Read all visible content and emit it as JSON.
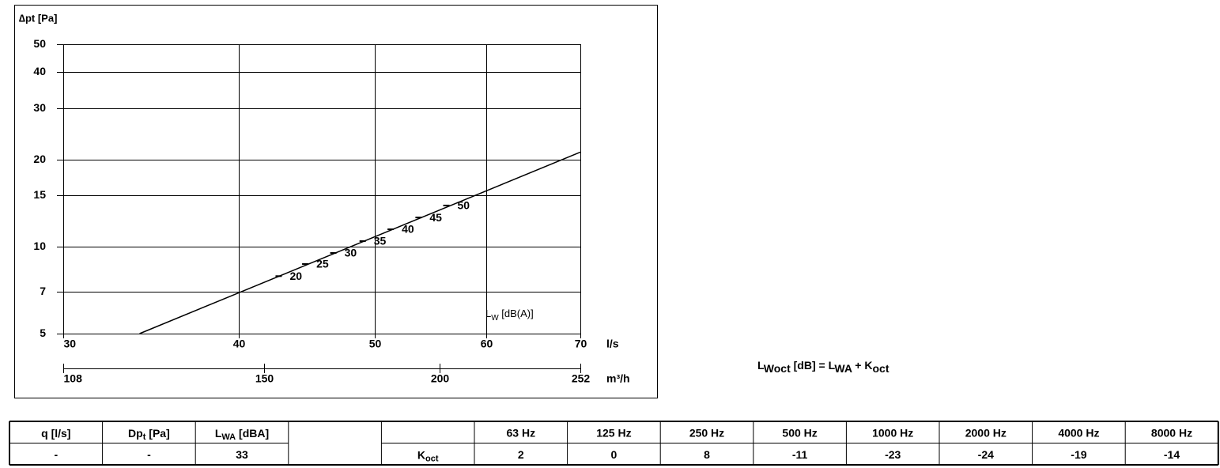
{
  "chart_data": {
    "type": "line",
    "ylabel": "∆pt [Pa]",
    "xlabel": "l/s",
    "x2label": "m³/h",
    "log_x": true,
    "log_y": true,
    "grid": true,
    "xlim": [
      30,
      70
    ],
    "xticks": [
      30,
      40,
      50,
      60,
      70
    ],
    "x2lim": [
      108,
      252
    ],
    "x2ticks": [
      108,
      150,
      200,
      252
    ],
    "ylim": [
      5,
      50
    ],
    "yticks": [
      5,
      7,
      10,
      15,
      20,
      30,
      40,
      50
    ],
    "line": {
      "x": [
        34,
        70
      ],
      "values": [
        5,
        21.2
      ],
      "color": "#000000"
    },
    "sound_levels": {
      "name": [
        "L",
        "W",
        " [dB(A)]"
      ],
      "x": [
        42.7,
        44.6,
        46.7,
        49.0,
        51.3,
        53.7,
        56.2
      ],
      "y": [
        7.9,
        8.7,
        9.5,
        10.44,
        11.47,
        12.6,
        13.86
      ],
      "values": [
        20,
        25,
        30,
        35,
        40,
        45,
        50
      ]
    }
  },
  "formula": [
    "L",
    "Woct",
    " [dB] = L",
    "WA",
    " + K",
    "oct"
  ],
  "table": {
    "headers": [
      [
        "q [l/s]"
      ],
      [
        "Dp",
        "t",
        " [Pa]"
      ],
      [
        "L",
        "WA",
        " [dBA]"
      ]
    ],
    "values": [
      "-",
      "-",
      "33"
    ],
    "bands": [
      "63 Hz",
      "125 Hz",
      "250 Hz",
      "500 Hz",
      "1000 Hz",
      "2000 Hz",
      "4000 Hz",
      "8000 Hz"
    ],
    "koct_label": [
      "K",
      "oct"
    ],
    "koct": [
      2,
      0,
      8,
      -11,
      -23,
      -24,
      -19,
      -14
    ]
  }
}
